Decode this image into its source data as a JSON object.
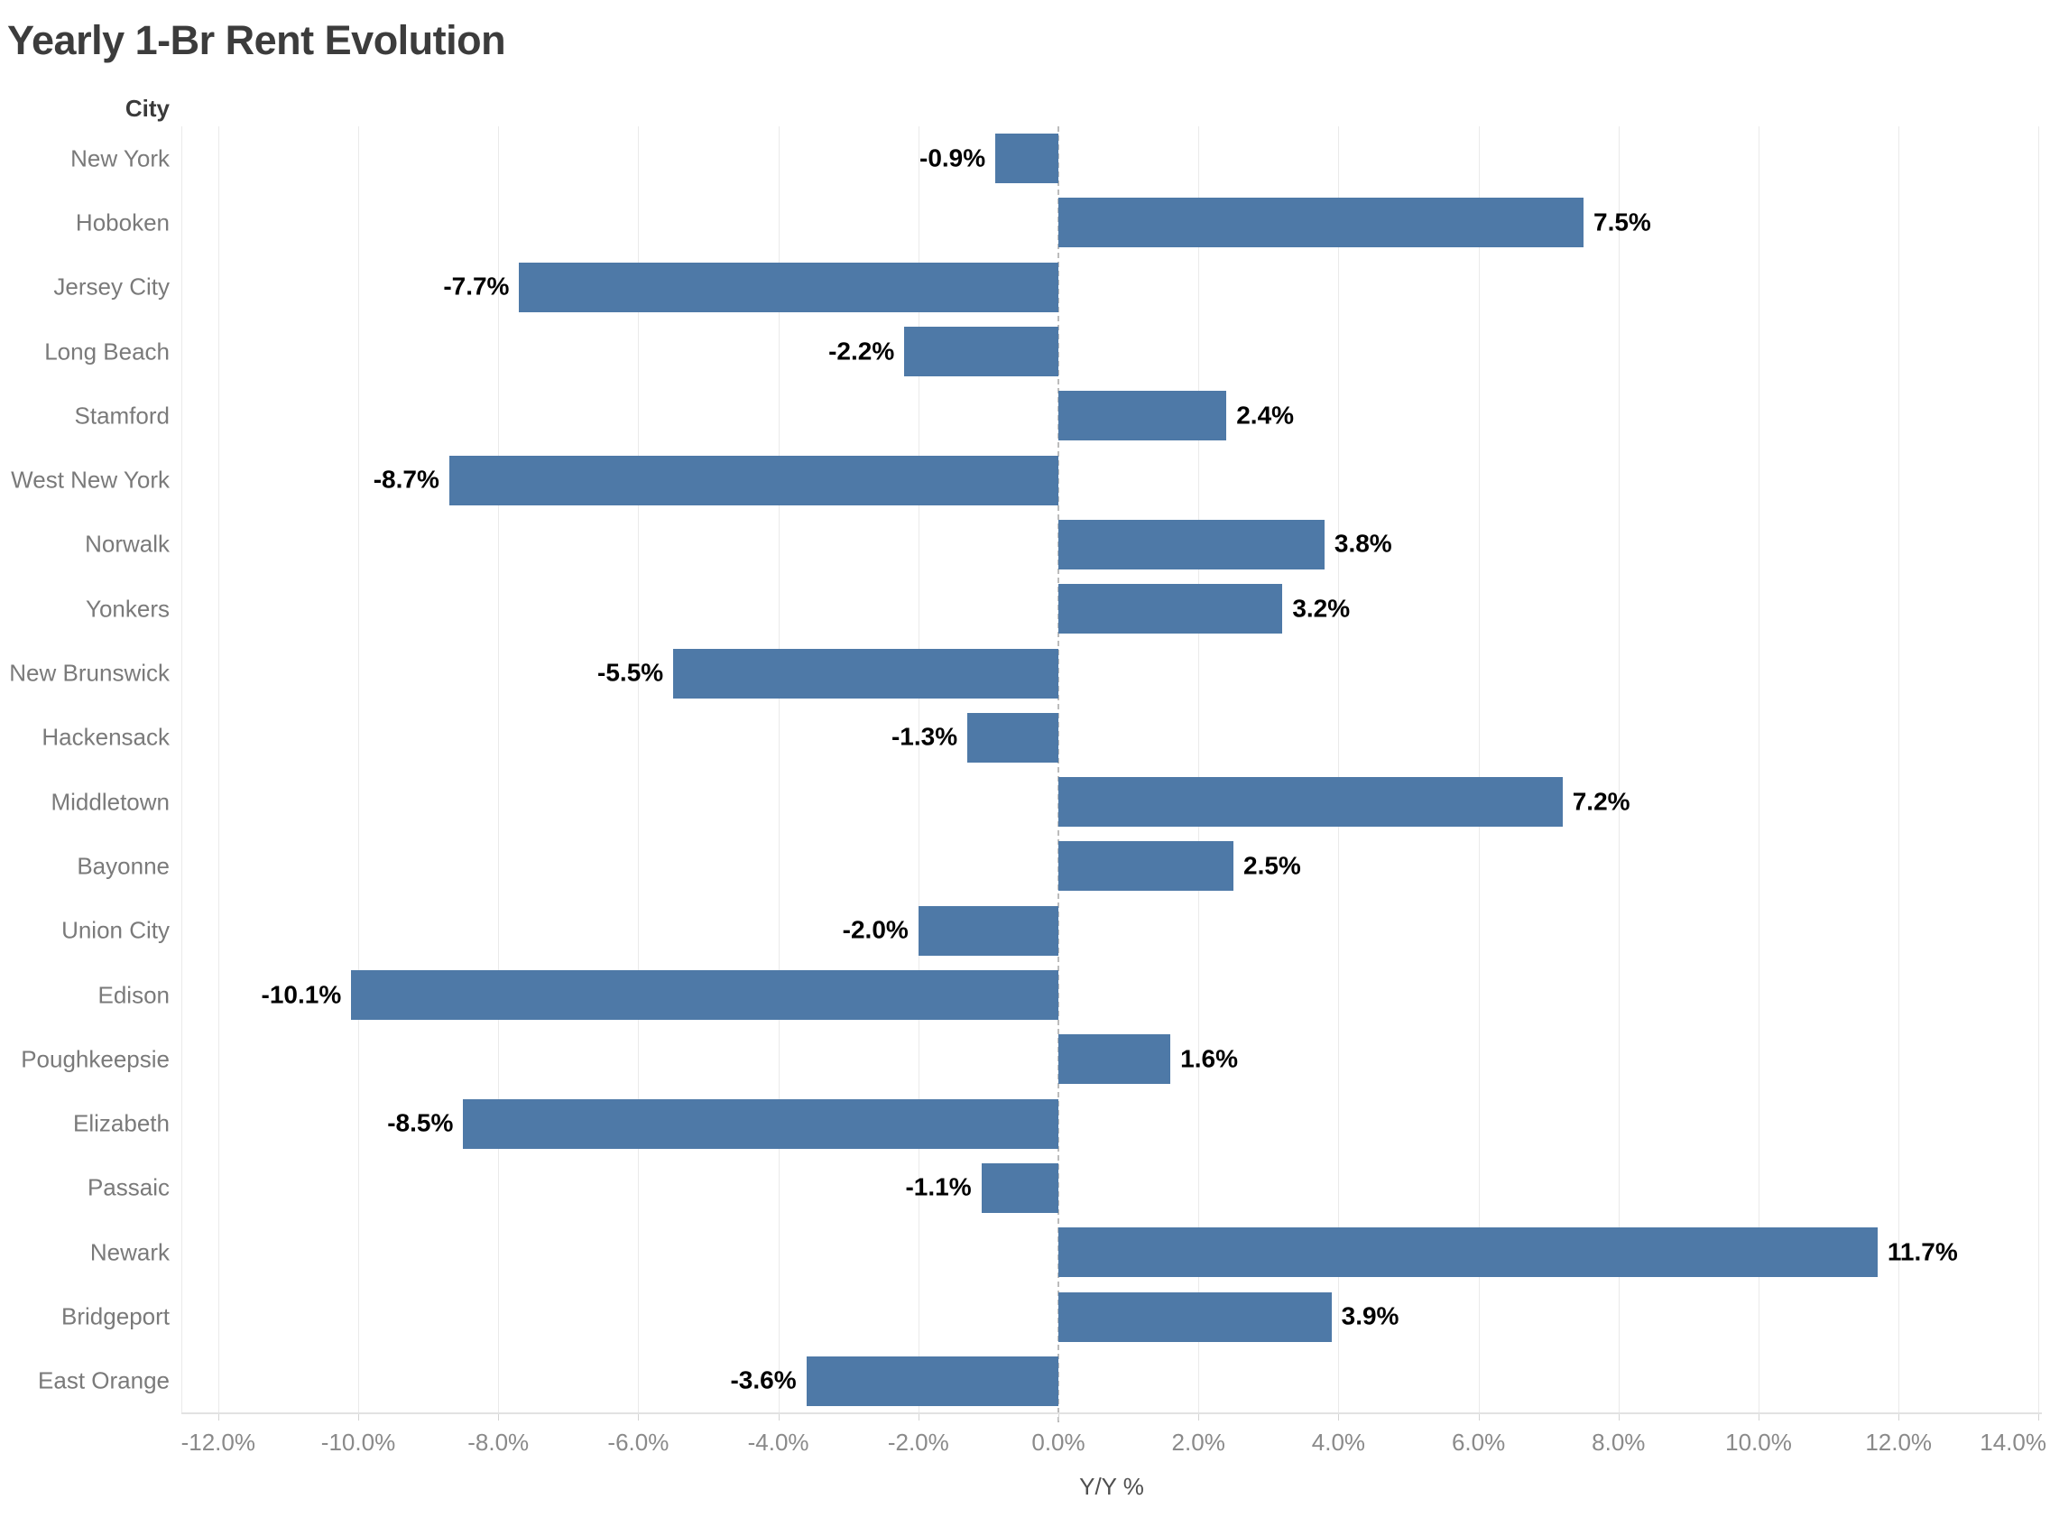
{
  "title": "Yearly 1-Br Rent Evolution",
  "column_header": "City",
  "chart_data": {
    "type": "bar",
    "orientation": "horizontal",
    "title": "Yearly 1-Br Rent Evolution",
    "xlabel": "Y/Y %",
    "ylabel": "City",
    "categories": [
      "New York",
      "Hoboken",
      "Jersey City",
      "Long Beach",
      "Stamford",
      "West New York",
      "Norwalk",
      "Yonkers",
      "New Brunswick",
      "Hackensack",
      "Middletown",
      "Bayonne",
      "Union City",
      "Edison",
      "Poughkeepsie",
      "Elizabeth",
      "Passaic",
      "Newark",
      "Bridgeport",
      "East Orange"
    ],
    "values": [
      -0.9,
      7.5,
      -7.7,
      -2.2,
      2.4,
      -8.7,
      3.8,
      3.2,
      -5.5,
      -1.3,
      7.2,
      2.5,
      -2.0,
      -10.1,
      1.6,
      -8.5,
      -1.1,
      11.7,
      3.9,
      -3.6
    ],
    "value_labels": [
      "-0.9%",
      "7.5%",
      "-7.7%",
      "-2.2%",
      "2.4%",
      "-8.7%",
      "3.8%",
      "3.2%",
      "-5.5%",
      "-1.3%",
      "7.2%",
      "2.5%",
      "-2.0%",
      "-10.1%",
      "1.6%",
      "-8.5%",
      "-1.1%",
      "11.7%",
      "3.9%",
      "-3.6%"
    ],
    "x_ticks": [
      -12,
      -10,
      -8,
      -6,
      -4,
      -2,
      0,
      2,
      4,
      6,
      8,
      10,
      12,
      14
    ],
    "x_tick_labels": [
      "-12.0%",
      "-10.0%",
      "-8.0%",
      "-6.0%",
      "-4.0%",
      "-2.0%",
      "0.0%",
      "2.0%",
      "4.0%",
      "6.0%",
      "8.0%",
      "10.0%",
      "12.0%",
      "14.0%"
    ],
    "xlim": [
      -12.5,
      14.1
    ],
    "grid": "vertical",
    "zero_line": "dashed",
    "legend": "none",
    "bar_color": "#4E79A7",
    "value_label_color": "#000000",
    "category_label_color": "#7a7a7a",
    "gridline_color": "#eaeaea"
  }
}
